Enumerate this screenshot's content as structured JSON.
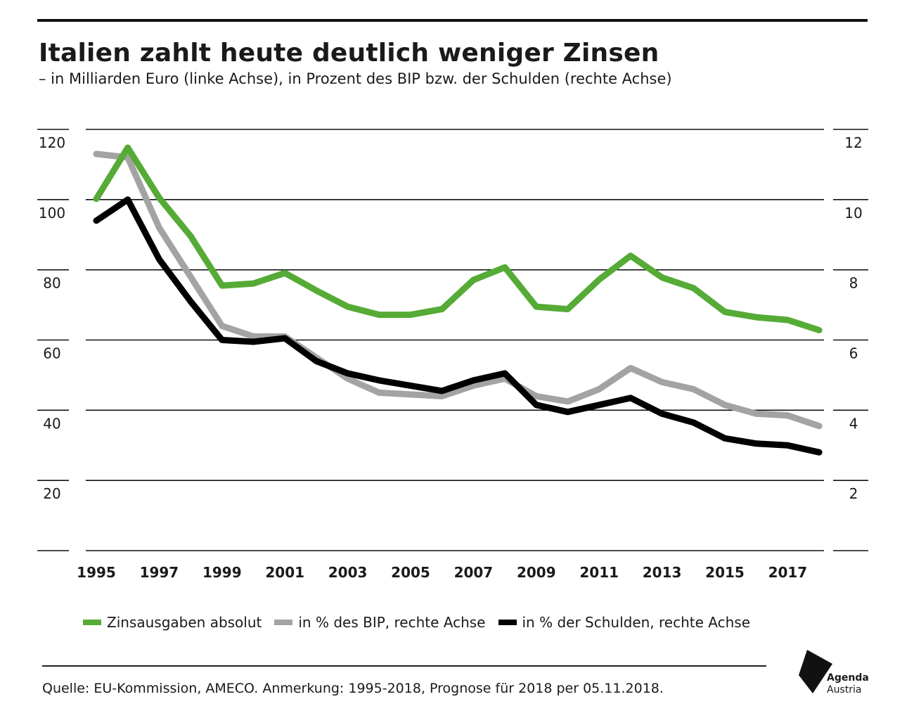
{
  "title": "Italien zahlt heute deutlich weniger Zinsen",
  "subtitle": "– in Milliarden Euro (linke Achse), in Prozent des BIP bzw. der Schulden (rechte Achse)",
  "source": "Quelle: EU-Kommission, AMECO. Anmerkung: 1995-2018, Prognose für 2018 per 05.11.2018.",
  "logo": {
    "line1": "Agenda",
    "line2": "Austria"
  },
  "legend": [
    {
      "label": "Zinsausgaben absolut",
      "color": "#55ab36"
    },
    {
      "label": "in % des BIP, rechte Achse",
      "color": "#a3a3a3"
    },
    {
      "label": "in % der Schulden, rechte Achse",
      "color": "#000000"
    }
  ],
  "chart_data": {
    "type": "line",
    "title": "Italien zahlt heute deutlich weniger Zinsen",
    "x": [
      1995,
      1996,
      1997,
      1998,
      1999,
      2000,
      2001,
      2002,
      2003,
      2004,
      2005,
      2006,
      2007,
      2008,
      2009,
      2010,
      2011,
      2012,
      2013,
      2014,
      2015,
      2016,
      2017,
      2018
    ],
    "x_tick_labels": [
      "1995",
      "1997",
      "1999",
      "2001",
      "2003",
      "2005",
      "2007",
      "2009",
      "2011",
      "2013",
      "2015",
      "2017"
    ],
    "y_left_ticks": [
      "20",
      "40",
      "60",
      "80",
      "100",
      "120"
    ],
    "y_right_ticks": [
      "2",
      "4",
      "6",
      "8",
      "10",
      "12"
    ],
    "ylim_left": [
      0,
      120
    ],
    "ylim_right": [
      0,
      12
    ],
    "grid": true,
    "legend_position": "bottom",
    "series": [
      {
        "name": "Zinsausgaben absolut",
        "axis": "left",
        "color": "#55ab36",
        "values": [
          100.2,
          114.8,
          100.5,
          89.6,
          75.5,
          76.1,
          79.1,
          74.1,
          69.5,
          67.2,
          67.2,
          68.8,
          77.1,
          80.7,
          69.5,
          68.8,
          77.2,
          84.0,
          77.8,
          74.8,
          68.0,
          66.5,
          65.7,
          62.8
        ]
      },
      {
        "name": "in % des BIP, rechte Achse",
        "axis": "right",
        "color": "#a3a3a3",
        "values": [
          11.3,
          11.2,
          9.2,
          7.8,
          6.4,
          6.1,
          6.1,
          5.5,
          4.9,
          4.5,
          4.45,
          4.4,
          4.7,
          4.9,
          4.4,
          4.25,
          4.6,
          5.2,
          4.8,
          4.6,
          4.15,
          3.9,
          3.85,
          3.55
        ]
      },
      {
        "name": "in % der Schulden, rechte Achse",
        "axis": "right",
        "color": "#000000",
        "values": [
          9.4,
          10.0,
          8.3,
          7.1,
          6.0,
          5.95,
          6.05,
          5.4,
          5.05,
          4.85,
          4.7,
          4.55,
          4.85,
          5.05,
          4.15,
          3.95,
          4.15,
          4.35,
          3.9,
          3.65,
          3.2,
          3.05,
          3.0,
          2.8
        ]
      }
    ]
  }
}
